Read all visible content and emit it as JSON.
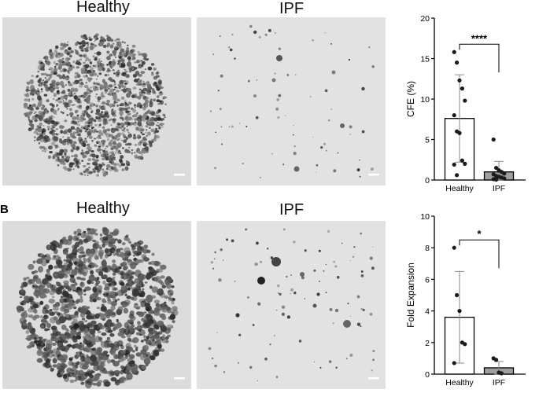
{
  "figure": {
    "panel_b_letter": "B",
    "row_a": {
      "left_label": "Healthy",
      "right_label": "IPF"
    },
    "row_b": {
      "left_label": "Healthy",
      "right_label": "IPF"
    }
  },
  "colors": {
    "background": "#ffffff",
    "micrograph_bg": "#dcdcdc",
    "colony_dark": "#2b2b2b",
    "bar_healthy": "#ffffff",
    "bar_ipf": "#9e9e9e",
    "points": "#1a1a1a"
  },
  "chart_data": [
    {
      "type": "bar",
      "categories": [
        "Healthy",
        "IPF"
      ],
      "values": [
        7.6,
        1.0
      ],
      "error_upper": [
        13.0,
        2.3
      ],
      "error_lower": [
        2.2,
        0.0
      ],
      "points": [
        [
          15.8,
          14.5,
          12.3,
          11.3,
          9.8,
          8.0,
          6.0,
          5.8,
          2.4,
          2.0,
          1.9,
          0.6
        ],
        [
          5.0,
          1.5,
          1.2,
          1.0,
          0.8,
          0.7,
          0.5,
          0.4,
          0.3,
          0.2,
          0.1,
          0.05
        ]
      ],
      "ylabel": "CFE (%)",
      "xlabel": "",
      "ylim": [
        0,
        20
      ],
      "yticks": [
        "0",
        "5",
        "10",
        "15",
        "20"
      ],
      "significance": "****",
      "grid": false
    },
    {
      "type": "bar",
      "categories": [
        "Healthy",
        "IPF"
      ],
      "values": [
        3.6,
        0.4
      ],
      "error_upper": [
        6.5,
        0.8
      ],
      "error_lower": [
        0.7,
        0.0
      ],
      "points": [
        [
          8.0,
          5.0,
          4.0,
          2.0,
          1.9,
          0.7
        ],
        [
          1.0,
          0.9,
          0.1,
          0.05
        ]
      ],
      "ylabel": "Fold Expansion",
      "xlabel": "",
      "ylim": [
        0,
        10
      ],
      "yticks": [
        "0",
        "2",
        "4",
        "6",
        "8",
        "10"
      ],
      "significance": "*",
      "grid": false
    }
  ]
}
